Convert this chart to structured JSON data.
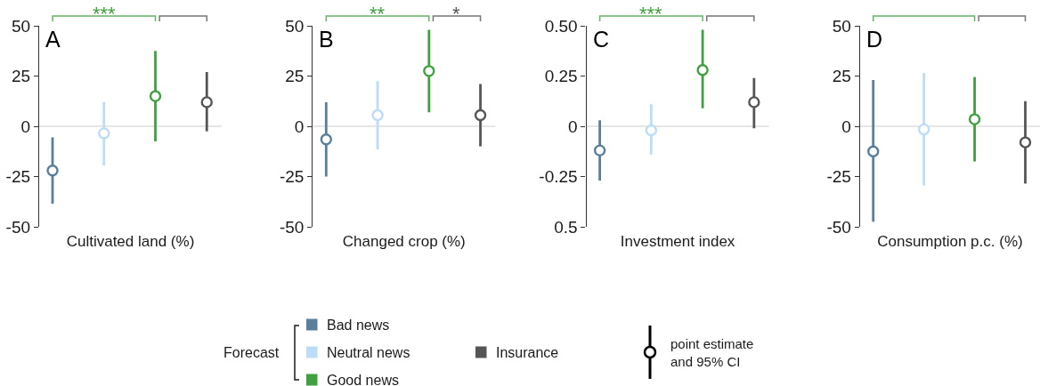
{
  "chart_data": [
    {
      "type": "scatter",
      "title": "A",
      "xlabel": "Cultivated land (%)",
      "categories": [
        null,
        null,
        null,
        null
      ],
      "ylim": [
        -50,
        50
      ],
      "yticks": [
        -50,
        -25,
        0,
        25,
        50
      ],
      "marker": "circle",
      "legend": "bottom",
      "legend_title": "Forecast",
      "ref_lines": [
        {
          "axis": "y",
          "value": 0,
          "color": "#e6e6e6"
        }
      ],
      "annotations": [
        "***"
      ],
      "series": [
        {
          "name": "Bad news",
          "color": "#5a7f9c",
          "values": [
            -22,
            null,
            null,
            null
          ],
          "errors": [
            [
              -38.5,
              -5.5
            ],
            null,
            null,
            null
          ]
        },
        {
          "name": "Neutral news",
          "color": "#bcdcf8",
          "values": [
            null,
            -3.5,
            null,
            null
          ],
          "errors": [
            null,
            [
              -19.5,
              12
            ],
            null,
            null
          ]
        },
        {
          "name": "Good news",
          "color": "#40a040",
          "values": [
            null,
            null,
            15,
            null
          ],
          "errors": [
            null,
            null,
            [
              -7.5,
              37.5
            ],
            null
          ]
        },
        {
          "name": "Insurance",
          "color": "#555555",
          "values": [
            null,
            null,
            null,
            12
          ],
          "errors": [
            null,
            null,
            null,
            [
              -2.5,
              27
            ]
          ]
        }
      ]
    },
    {
      "type": "scatter",
      "title": "B",
      "xlabel": "Changed crop (%)",
      "categories": [
        null,
        null,
        null,
        null
      ],
      "ylim": [
        -50,
        50
      ],
      "yticks": [
        -50,
        -25,
        0,
        25,
        50
      ],
      "marker": "circle",
      "ref_lines": [
        {
          "axis": "y",
          "value": 0,
          "color": "#e6e6e6"
        }
      ],
      "annotations": [
        "**",
        "*"
      ],
      "series": [
        {
          "color": "#5a7f9c",
          "values": [
            -6.5,
            null,
            null,
            null
          ],
          "errors": [
            [
              -25,
              12
            ],
            null,
            null,
            null
          ]
        },
        {
          "color": "#bcdcf8",
          "values": [
            null,
            5.5,
            null,
            null
          ],
          "errors": [
            null,
            [
              -11.5,
              22.5
            ],
            null,
            null
          ]
        },
        {
          "color": "#40a040",
          "values": [
            null,
            null,
            27.5,
            null
          ],
          "errors": [
            null,
            null,
            [
              7,
              48
            ],
            null
          ]
        },
        {
          "color": "#555555",
          "values": [
            null,
            null,
            null,
            5.5
          ],
          "errors": [
            null,
            null,
            null,
            [
              -10,
              21
            ]
          ]
        }
      ]
    },
    {
      "type": "scatter",
      "title": "C",
      "xlabel": "Investment index",
      "categories": [
        null,
        null,
        null,
        null
      ],
      "ylim": [
        -0.5,
        0.5
      ],
      "yticks": [
        {
          "value": -0.5,
          "label": "0.5"
        },
        -0.25,
        0,
        0.25,
        {
          "value": 0.5,
          "label": "0.50"
        }
      ],
      "marker": "circle",
      "ref_lines": [
        {
          "axis": "y",
          "value": 0,
          "color": "#e6e6e6"
        }
      ],
      "annotations": [
        "***"
      ],
      "series": [
        {
          "color": "#5a7f9c",
          "values": [
            -0.12,
            null,
            null,
            null
          ],
          "errors": [
            [
              -0.27,
              0.03
            ],
            null,
            null,
            null
          ]
        },
        {
          "color": "#bcdcf8",
          "values": [
            null,
            -0.02,
            null,
            null
          ],
          "errors": [
            null,
            [
              -0.14,
              0.11
            ],
            null,
            null
          ]
        },
        {
          "color": "#40a040",
          "values": [
            null,
            null,
            0.28,
            null
          ],
          "errors": [
            null,
            null,
            [
              0.09,
              0.48
            ],
            null
          ]
        },
        {
          "color": "#555555",
          "values": [
            null,
            null,
            null,
            0.12
          ],
          "errors": [
            null,
            null,
            null,
            [
              -0.01,
              0.24
            ]
          ]
        }
      ]
    },
    {
      "type": "scatter",
      "title": "D",
      "xlabel": "Consumption p.c. (%)",
      "categories": [
        null,
        null,
        null,
        null
      ],
      "ylim": [
        -50,
        50
      ],
      "yticks": [
        -50,
        -25,
        0,
        25,
        50
      ],
      "marker": "circle",
      "ref_lines": [
        {
          "axis": "y",
          "value": 0,
          "color": "#e6e6e6"
        }
      ],
      "series": [
        {
          "color": "#5a7f9c",
          "values": [
            -12.5,
            null,
            null,
            null
          ],
          "errors": [
            [
              -47.5,
              23
            ],
            null,
            null,
            null
          ]
        },
        {
          "color": "#bcdcf8",
          "values": [
            null,
            -1.5,
            null,
            null
          ],
          "errors": [
            null,
            [
              -29.5,
              26.5
            ],
            null,
            null
          ]
        },
        {
          "color": "#40a040",
          "values": [
            null,
            null,
            3.5,
            null
          ],
          "errors": [
            null,
            null,
            [
              -17.5,
              24.5
            ],
            null
          ]
        },
        {
          "color": "#555555",
          "values": [
            null,
            null,
            null,
            -8
          ],
          "errors": [
            null,
            null,
            null,
            [
              -28.5,
              12.5
            ]
          ]
        }
      ]
    },
    {
      "type": "other",
      "annotations": [
        "point estimate\nand 95% CI"
      ]
    }
  ]
}
